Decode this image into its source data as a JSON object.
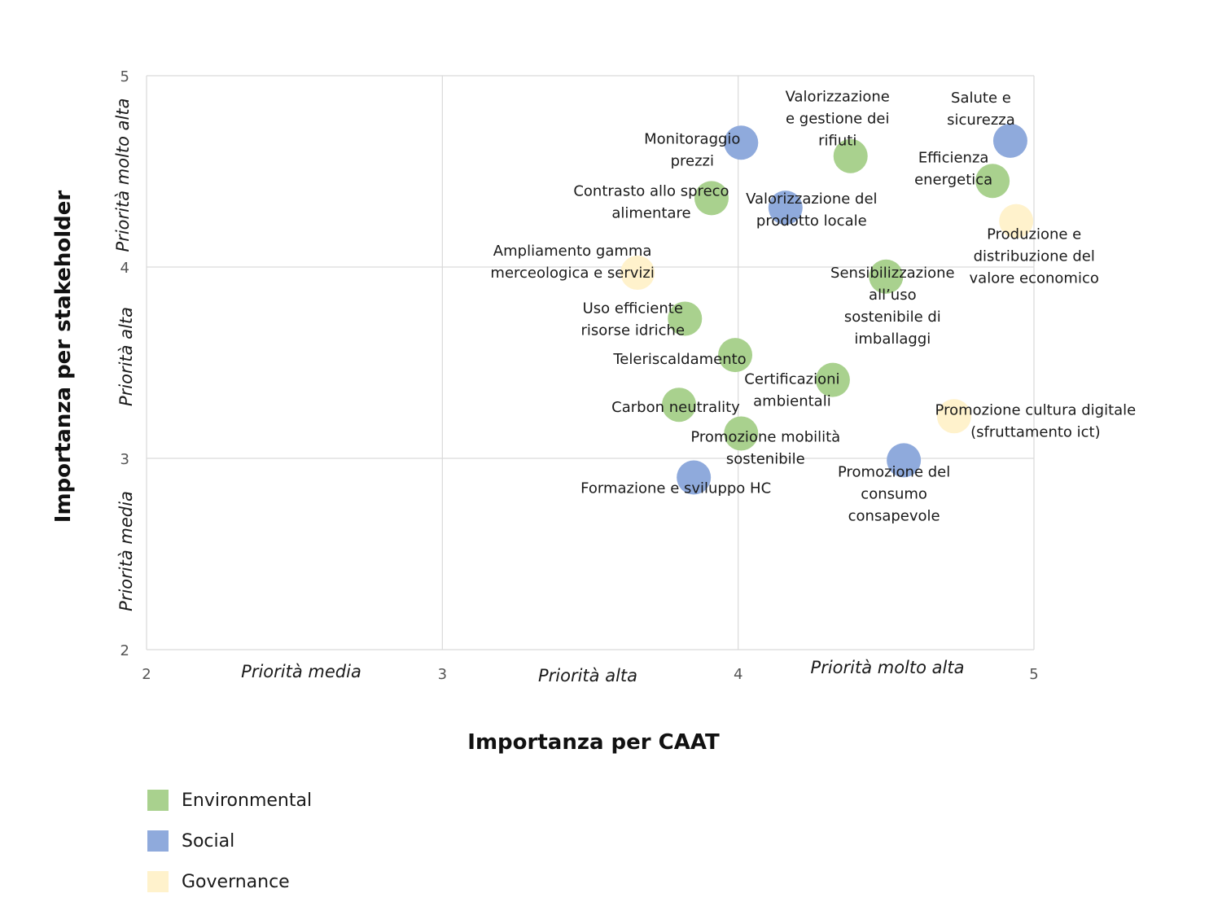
{
  "chart_data": {
    "type": "scatter",
    "xlabel": "Importanza per CAAT",
    "ylabel": "Importanza per stakeholder",
    "xlim": [
      2,
      5
    ],
    "ylim": [
      2,
      5
    ],
    "x_ticks": [
      "2",
      "3",
      "4",
      "5"
    ],
    "y_ticks": [
      "2",
      "3",
      "4",
      "5"
    ],
    "x_bands": [
      "Priorità media",
      "Priorità alta",
      "Priorità molto  alta"
    ],
    "y_bands": [
      "Priorità media",
      "Priorità alta",
      "Priorità molto alta"
    ],
    "grid": true,
    "legend_position": "bottom-left",
    "series": [
      {
        "name": "Environmental",
        "color": "#a9d18e",
        "points": [
          {
            "x": 4.38,
            "y": 4.58,
            "label": "Valorizzazione\ne gestione dei\nrifiuti"
          },
          {
            "x": 4.86,
            "y": 4.45,
            "label": "Efficienza\nenergetica"
          },
          {
            "x": 3.91,
            "y": 4.36,
            "label": "Contrasto allo spreco\nalimentare"
          },
          {
            "x": 4.5,
            "y": 3.95,
            "label": "Sensibilizzazione\nall’uso\nsostenibile di\nimballaggi"
          },
          {
            "x": 3.82,
            "y": 3.73,
            "label": "Uso efficiente\nrisorse idriche"
          },
          {
            "x": 3.99,
            "y": 3.54,
            "label": "Teleriscaldamento"
          },
          {
            "x": 4.32,
            "y": 3.41,
            "label": "Certificazioni\nambientali"
          },
          {
            "x": 3.8,
            "y": 3.28,
            "label": "Carbon neutrality"
          },
          {
            "x": 4.01,
            "y": 3.13,
            "label": "Promozione mobilità\nsostenibile"
          }
        ]
      },
      {
        "name": "Social",
        "color": "#8faadc",
        "points": [
          {
            "x": 4.01,
            "y": 4.65,
            "label": "Monitoraggio\nprezzi"
          },
          {
            "x": 4.92,
            "y": 4.66,
            "label": "Salute e\nsicurezza"
          },
          {
            "x": 4.16,
            "y": 4.31,
            "label": "Valorizzazione del\nprodotto locale"
          },
          {
            "x": 4.56,
            "y": 2.99,
            "label": "Promozione del\nconsumo\nconsapevole"
          },
          {
            "x": 3.85,
            "y": 2.9,
            "label": "Formazione e sviluppo HC"
          }
        ]
      },
      {
        "name": "Governance",
        "color": "#fff2cc",
        "points": [
          {
            "x": 4.94,
            "y": 4.24,
            "label": "Produzione e\ndistribuzione del\nvalore economico"
          },
          {
            "x": 3.66,
            "y": 3.97,
            "label": "Ampliamento gamma\nmerceologica e servizi"
          },
          {
            "x": 4.73,
            "y": 3.22,
            "label": "Promozione cultura digitale\n(sfruttamento ict)"
          }
        ]
      }
    ]
  }
}
